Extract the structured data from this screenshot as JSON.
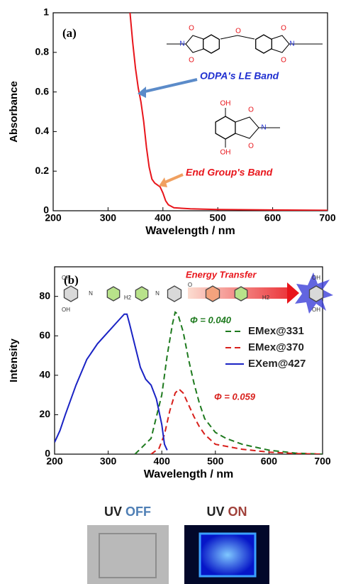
{
  "chart_data": [
    {
      "type": "line",
      "panel_label": "(a)",
      "xlabel": "Wavelength / nm",
      "ylabel": "Absorbance",
      "xlim": [
        200,
        700
      ],
      "xticks": [
        200,
        300,
        400,
        500,
        600,
        700
      ],
      "ylim": [
        0,
        1
      ],
      "yticks": [
        0,
        0.2,
        0.4,
        0.6,
        0.8,
        1
      ],
      "series": [
        {
          "color": "#e8151b",
          "x": [
            340,
            345,
            350,
            355,
            360,
            365,
            370,
            375,
            380,
            385,
            390,
            395,
            400,
            405,
            410,
            420,
            450,
            500,
            600,
            700
          ],
          "values": [
            1.0,
            0.85,
            0.72,
            0.62,
            0.55,
            0.45,
            0.32,
            0.22,
            0.16,
            0.14,
            0.13,
            0.12,
            0.09,
            0.05,
            0.03,
            0.015,
            0.01,
            0.006,
            0.004,
            0.002
          ]
        }
      ],
      "annotations": [
        {
          "text": "ODPA's LE Band",
          "color": "#1f2fd0"
        },
        {
          "text": "End Group's Band",
          "color": "#e8151b"
        }
      ],
      "structures": [
        [
          "O",
          "O",
          "N",
          "O",
          "O",
          "O",
          "N"
        ],
        [
          "OH",
          "OH",
          "O",
          "O",
          "N"
        ]
      ]
    },
    {
      "type": "line",
      "panel_label": "(b)",
      "xlabel": "Wavelength / nm",
      "ylabel": "Intensity",
      "xlim": [
        200,
        700
      ],
      "xticks": [
        200,
        300,
        400,
        500,
        600,
        700
      ],
      "ylim": [
        0,
        95
      ],
      "yticks": [
        0,
        20,
        40,
        60,
        80
      ],
      "legend": "right",
      "series": [
        {
          "name": "EMex@331",
          "color": "#1e7a1e",
          "dash": true,
          "x": [
            350,
            380,
            400,
            410,
            420,
            425,
            430,
            440,
            450,
            460,
            470,
            480,
            500,
            520,
            550,
            600,
            650,
            700
          ],
          "values": [
            0,
            8,
            30,
            50,
            66,
            72,
            71,
            62,
            48,
            36,
            26,
            18,
            11,
            8,
            5,
            2,
            0.5,
            0
          ]
        },
        {
          "name": "EMex@370",
          "color": "#d8201c",
          "dash": true,
          "x": [
            380,
            395,
            405,
            415,
            425,
            432,
            440,
            450,
            460,
            470,
            480,
            500,
            550,
            600,
            650,
            700
          ],
          "values": [
            0,
            3,
            10,
            22,
            31,
            33,
            31,
            25,
            19,
            14,
            10,
            5,
            2.5,
            1,
            0.3,
            0
          ]
        },
        {
          "name": "EXem@427",
          "color": "#1a23c4",
          "dash": false,
          "x": [
            200,
            210,
            220,
            240,
            260,
            280,
            300,
            320,
            330,
            335,
            340,
            350,
            360,
            370,
            380,
            390,
            400,
            405,
            410
          ],
          "values": [
            6,
            12,
            20,
            35,
            48,
            56,
            62,
            68,
            71,
            71,
            66,
            55,
            44,
            38,
            35,
            28,
            15,
            5,
            2
          ]
        }
      ],
      "annotations": [
        {
          "text": "Φ = 0.040",
          "color": "#1e7a1e"
        },
        {
          "text": "Φ = 0.059",
          "color": "#d8201c"
        },
        {
          "text": "Energy Transfer",
          "color": "#e8151b"
        }
      ],
      "structures": [
        [
          "OH",
          "OH",
          "N",
          "H2",
          "N",
          "O",
          "H2",
          "OH",
          "OH"
        ]
      ]
    }
  ],
  "photos": [
    {
      "prefix": "UV",
      "state": "OFF"
    },
    {
      "prefix": "UV",
      "state": "ON"
    }
  ]
}
